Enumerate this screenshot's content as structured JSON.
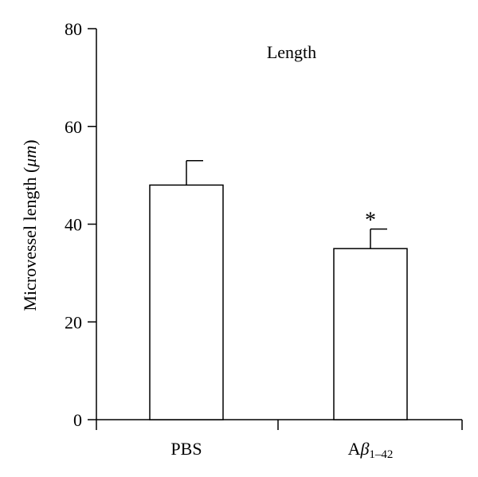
{
  "chart_data": {
    "type": "bar",
    "title": "Length",
    "ylabel": "Microvessel length (μm)",
    "ylabel_parts": {
      "main": "Microvessel length (",
      "unit": "μm",
      "close": ")"
    },
    "xlabel": "",
    "ylim": [
      0,
      80
    ],
    "yticks": [
      0,
      20,
      40,
      60,
      80
    ],
    "categories": [
      "PBS",
      "Aβ1–42"
    ],
    "category_labels": [
      {
        "main": "PBS",
        "sub": ""
      },
      {
        "main": "Aβ",
        "sub": "1–42"
      }
    ],
    "values": [
      48,
      35
    ],
    "errors": [
      5,
      4
    ],
    "annotations": [
      "",
      "*"
    ],
    "bar_fill": "#ffffff",
    "bar_stroke": "#000000",
    "grid": false,
    "legend": "none"
  }
}
